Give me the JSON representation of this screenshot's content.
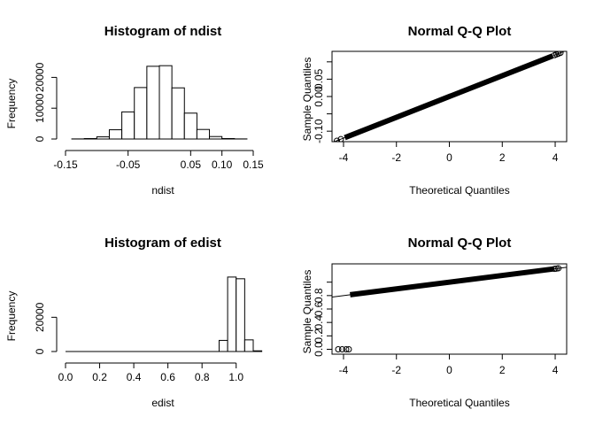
{
  "chart_data": [
    {
      "type": "bar",
      "title": "Histogram of ndist",
      "xlabel": "ndist",
      "ylabel": "Frequency",
      "bins": [
        {
          "x0": -0.14,
          "x1": -0.12,
          "count": 30
        },
        {
          "x0": -0.12,
          "x1": -0.1,
          "count": 150
        },
        {
          "x0": -0.1,
          "x1": -0.08,
          "count": 700
        },
        {
          "x0": -0.08,
          "x1": -0.06,
          "count": 3000
        },
        {
          "x0": -0.06,
          "x1": -0.04,
          "count": 8800
        },
        {
          "x0": -0.04,
          "x1": -0.02,
          "count": 16700
        },
        {
          "x0": -0.02,
          "x1": 0.0,
          "count": 23600
        },
        {
          "x0": 0.0,
          "x1": 0.02,
          "count": 23800
        },
        {
          "x0": 0.02,
          "x1": 0.04,
          "count": 16600
        },
        {
          "x0": 0.04,
          "x1": 0.06,
          "count": 8400
        },
        {
          "x0": 0.06,
          "x1": 0.08,
          "count": 3100
        },
        {
          "x0": 0.08,
          "x1": 0.1,
          "count": 800
        },
        {
          "x0": 0.1,
          "x1": 0.12,
          "count": 150
        },
        {
          "x0": 0.12,
          "x1": 0.14,
          "count": 30
        }
      ],
      "xlim": [
        -0.15,
        0.15
      ],
      "ylim": [
        0,
        25000
      ],
      "xticks": [
        -0.15,
        -0.05,
        0.05,
        0.1,
        0.15
      ],
      "xtick_labels": [
        "-0.15",
        "-0.05",
        "0.05",
        "0.10",
        "0.15"
      ],
      "yticks": [
        0,
        10000,
        20000
      ],
      "ytick_labels": [
        "0",
        "10000",
        "20000"
      ]
    },
    {
      "type": "scatter",
      "title": "Normal Q-Q Plot",
      "xlabel": "Theoretical Quantiles",
      "ylabel": "Sample Quantiles",
      "distribution": "normal",
      "sd": 0.03,
      "xlim": [
        -4.3,
        4.3
      ],
      "ylim": [
        -0.12,
        0.12
      ],
      "xticks": [
        -4,
        -2,
        0,
        2,
        4
      ],
      "xtick_labels": [
        "-4",
        "-2",
        "0",
        "2",
        "4"
      ],
      "yticks": [
        -0.1,
        -0.05,
        0.0,
        0.05,
        0.1
      ],
      "ytick_labels": [
        "-0.10",
        "",
        "0.00",
        "0.05",
        ""
      ]
    },
    {
      "type": "bar",
      "title": "Histogram of edist",
      "xlabel": "edist",
      "ylabel": "Frequency",
      "bins": [
        {
          "x0": 0.0,
          "x1": 0.9,
          "count": 0
        },
        {
          "x0": 0.9,
          "x1": 0.95,
          "count": 6500
        },
        {
          "x0": 0.95,
          "x1": 1.0,
          "count": 43500
        },
        {
          "x0": 1.0,
          "x1": 1.05,
          "count": 42500
        },
        {
          "x0": 1.05,
          "x1": 1.1,
          "count": 6800
        },
        {
          "x0": 1.1,
          "x1": 1.15,
          "count": 400
        }
      ],
      "xlim": [
        0,
        1.1
      ],
      "ylim": [
        0,
        45000
      ],
      "xticks": [
        0.0,
        0.2,
        0.4,
        0.6,
        0.8,
        1.0
      ],
      "xtick_labels": [
        "0.0",
        "0.2",
        "0.4",
        "0.6",
        "0.8",
        "1.0"
      ],
      "yticks": [
        0,
        20000
      ],
      "ytick_labels": [
        "0",
        "20000"
      ]
    },
    {
      "type": "scatter",
      "title": "Normal Q-Q Plot",
      "xlabel": "Theoretical Quantiles",
      "ylabel": "Sample Quantiles",
      "distribution": "normal",
      "sd": 0.05,
      "outliers": [
        {
          "x": -4.2,
          "y": 0.0
        },
        {
          "x": -4.05,
          "y": 0.0
        },
        {
          "x": -3.9,
          "y": 0.0
        },
        {
          "x": -3.8,
          "y": 0.0
        }
      ],
      "xlim": [
        -4.3,
        4.3
      ],
      "ylim": [
        -0.02,
        1.22
      ],
      "xticks": [
        -4,
        -2,
        0,
        2,
        4
      ],
      "xtick_labels": [
        "-4",
        "-2",
        "0",
        "2",
        "4"
      ],
      "yticks": [
        0.0,
        0.2,
        0.4,
        0.6,
        0.8,
        1.0
      ],
      "ytick_labels": [
        "0.0",
        "0.2",
        "0.4",
        "0.6",
        "0.8",
        ""
      ]
    }
  ]
}
